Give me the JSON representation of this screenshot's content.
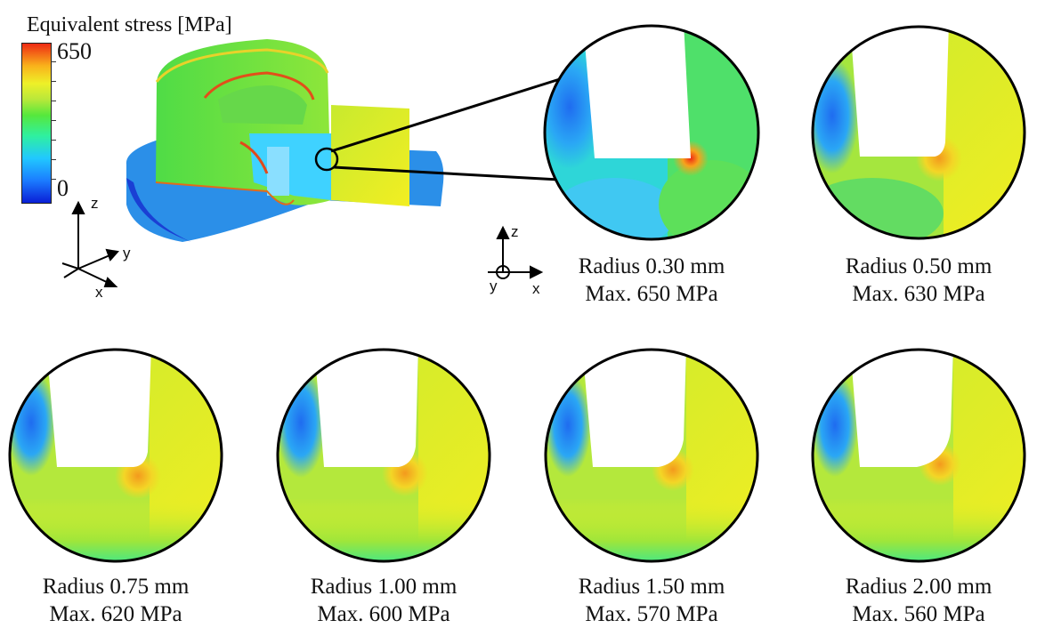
{
  "legend": {
    "title": "Equivalent stress [MPa]",
    "max_label": "650",
    "min_label": "0",
    "colors": [
      "#0a1fd6",
      "#21c8ff",
      "#56e83c",
      "#eef028",
      "#ee2a14"
    ]
  },
  "axes_3d": {
    "z": "z",
    "y": "y",
    "x": "x"
  },
  "axes_2d": {
    "z": "z",
    "y": "y",
    "x": "x"
  },
  "details": [
    {
      "radius": "Radius 0.30 mm",
      "max": "Max. 650 MPa"
    },
    {
      "radius": "Radius 0.50 mm",
      "max": "Max. 630 MPa"
    },
    {
      "radius": "Radius 0.75 mm",
      "max": "Max. 620 MPa"
    },
    {
      "radius": "Radius 1.00 mm",
      "max": "Max. 600 MPa"
    },
    {
      "radius": "Radius 1.50 mm",
      "max": "Max. 570 MPa"
    },
    {
      "radius": "Radius 2.00 mm",
      "max": "Max. 560 MPa"
    }
  ]
}
